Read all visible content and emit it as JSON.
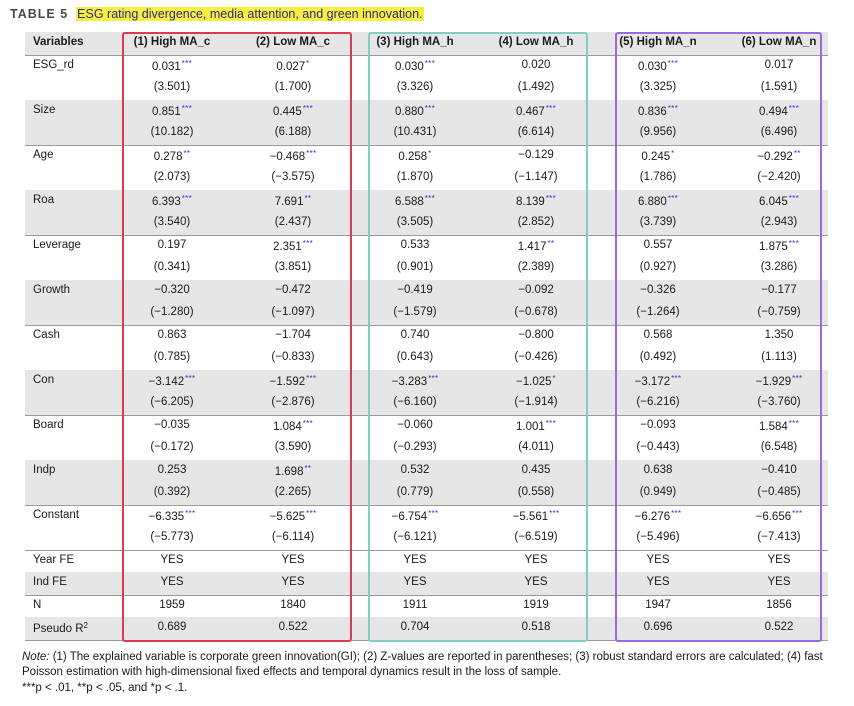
{
  "title": {
    "label": "TABLE 5",
    "caption": "ESG rating divergence, media attention, and green innovation."
  },
  "headers": [
    "Variables",
    "(1) High MA_c",
    "(2) Low MA_c",
    "(3) High MA_h",
    "(4) Low MA_h",
    "(5) High MA_n",
    "(6) Low MA_n"
  ],
  "rows": [
    {
      "name": "ESG_rd",
      "coef": [
        [
          "0.031",
          "***"
        ],
        [
          "0.027",
          "*"
        ],
        [
          "0.030",
          "***"
        ],
        [
          "0.020",
          ""
        ],
        [
          "0.030",
          "***"
        ],
        [
          "0.017",
          ""
        ]
      ],
      "z": [
        "(3.501)",
        "(1.700)",
        "(3.326)",
        "(1.492)",
        "(3.325)",
        "(1.591)"
      ]
    },
    {
      "name": "Size",
      "coef": [
        [
          "0.851",
          "***"
        ],
        [
          "0.445",
          "***"
        ],
        [
          "0.880",
          "***"
        ],
        [
          "0.467",
          "***"
        ],
        [
          "0.836",
          "***"
        ],
        [
          "0.494",
          "***"
        ]
      ],
      "z": [
        "(10.182)",
        "(6.188)",
        "(10.431)",
        "(6.614)",
        "(9.956)",
        "(6.496)"
      ]
    },
    {
      "name": "Age",
      "coef": [
        [
          "0.278",
          "**"
        ],
        [
          "−0.468",
          "***"
        ],
        [
          "0.258",
          "*"
        ],
        [
          "−0.129",
          ""
        ],
        [
          "0.245",
          "*"
        ],
        [
          "−0.292",
          "**"
        ]
      ],
      "z": [
        "(2.073)",
        "(−3.575)",
        "(1.870)",
        "(−1.147)",
        "(1.786)",
        "(−2.420)"
      ]
    },
    {
      "name": "Roa",
      "coef": [
        [
          "6.393",
          "***"
        ],
        [
          "7.691",
          "**"
        ],
        [
          "6.588",
          "***"
        ],
        [
          "8.139",
          "***"
        ],
        [
          "6.880",
          "***"
        ],
        [
          "6.045",
          "***"
        ]
      ],
      "z": [
        "(3.540)",
        "(2.437)",
        "(3.505)",
        "(2.852)",
        "(3.739)",
        "(2.943)"
      ]
    },
    {
      "name": "Leverage",
      "coef": [
        [
          "0.197",
          ""
        ],
        [
          "2.351",
          "***"
        ],
        [
          "0.533",
          ""
        ],
        [
          "1.417",
          "**"
        ],
        [
          "0.557",
          ""
        ],
        [
          "1.875",
          "***"
        ]
      ],
      "z": [
        "(0.341)",
        "(3.851)",
        "(0.901)",
        "(2.389)",
        "(0.927)",
        "(3.286)"
      ]
    },
    {
      "name": "Growth",
      "coef": [
        [
          "−0.320",
          ""
        ],
        [
          "−0.472",
          ""
        ],
        [
          "−0.419",
          ""
        ],
        [
          "−0.092",
          ""
        ],
        [
          "−0.326",
          ""
        ],
        [
          "−0.177",
          ""
        ]
      ],
      "z": [
        "(−1.280)",
        "(−1.097)",
        "(−1.579)",
        "(−0.678)",
        "(−1.264)",
        "(−0.759)"
      ]
    },
    {
      "name": "Cash",
      "coef": [
        [
          "0.863",
          ""
        ],
        [
          "−1.704",
          ""
        ],
        [
          "0.740",
          ""
        ],
        [
          "−0.800",
          ""
        ],
        [
          "0.568",
          ""
        ],
        [
          "1.350",
          ""
        ]
      ],
      "z": [
        "(0.785)",
        "(−0.833)",
        "(0.643)",
        "(−0.426)",
        "(0.492)",
        "(1.113)"
      ]
    },
    {
      "name": "Con",
      "coef": [
        [
          "−3.142",
          "***"
        ],
        [
          "−1.592",
          "***"
        ],
        [
          "−3.283",
          "***"
        ],
        [
          "−1.025",
          "*"
        ],
        [
          "−3.172",
          "***"
        ],
        [
          "−1.929",
          "***"
        ]
      ],
      "z": [
        "(−6.205)",
        "(−2.876)",
        "(−6.160)",
        "(−1.914)",
        "(−6.216)",
        "(−3.760)"
      ]
    },
    {
      "name": "Board",
      "coef": [
        [
          "−0.035",
          ""
        ],
        [
          "1.084",
          "***"
        ],
        [
          "−0.060",
          ""
        ],
        [
          "1.001",
          "***"
        ],
        [
          "−0.093",
          ""
        ],
        [
          "1.584",
          "***"
        ]
      ],
      "z": [
        "(−0.172)",
        "(3.590)",
        "(−0.293)",
        "(4.011)",
        "(−0.443)",
        "(6.548)"
      ]
    },
    {
      "name": "Indp",
      "coef": [
        [
          "0.253",
          ""
        ],
        [
          "1.698",
          "**"
        ],
        [
          "0.532",
          ""
        ],
        [
          "0.435",
          ""
        ],
        [
          "0.638",
          ""
        ],
        [
          "−0.410",
          ""
        ]
      ],
      "z": [
        "(0.392)",
        "(2.265)",
        "(0.779)",
        "(0.558)",
        "(0.949)",
        "(−0.485)"
      ]
    },
    {
      "name": "Constant",
      "coef": [
        [
          "−6.335",
          "***"
        ],
        [
          "−5.625",
          "***"
        ],
        [
          "−6.754",
          "***"
        ],
        [
          "−5.561",
          "***"
        ],
        [
          "−6.276",
          "***"
        ],
        [
          "−6.656",
          "***"
        ]
      ],
      "z": [
        "(−5.773)",
        "(−6.114)",
        "(−6.121)",
        "(−6.519)",
        "(−5.496)",
        "(−7.413)"
      ]
    }
  ],
  "footer_rows": [
    {
      "name": "Year FE",
      "values": [
        "YES",
        "YES",
        "YES",
        "YES",
        "YES",
        "YES"
      ]
    },
    {
      "name": "Ind FE",
      "values": [
        "YES",
        "YES",
        "YES",
        "YES",
        "YES",
        "YES"
      ]
    },
    {
      "name": "N",
      "values": [
        "1959",
        "1840",
        "1911",
        "1919",
        "1947",
        "1856"
      ]
    },
    {
      "name": "Pseudo R",
      "sup": "2",
      "values": [
        "0.689",
        "0.522",
        "0.704",
        "0.518",
        "0.696",
        "0.522"
      ]
    }
  ],
  "note": {
    "label": "Note:",
    "text": "(1) The explained variable is corporate green innovation(GI); (2) Z-values are reported in parentheses; (3) robust standard errors are calculated; (4) fast Poisson estimation with high-dimensional fixed effects and temporal dynamics result in the loss of sample."
  },
  "significance": "***p < .01, **p < .05, and *p < .1.",
  "colors": {
    "highlight": "#fbee3c",
    "caption_text": "#1f2e8a",
    "star": "#2436c6",
    "box1": "#d93a55",
    "box2": "#7ecec4",
    "box3": "#9c68e6",
    "shade": "#e6e6e6"
  }
}
